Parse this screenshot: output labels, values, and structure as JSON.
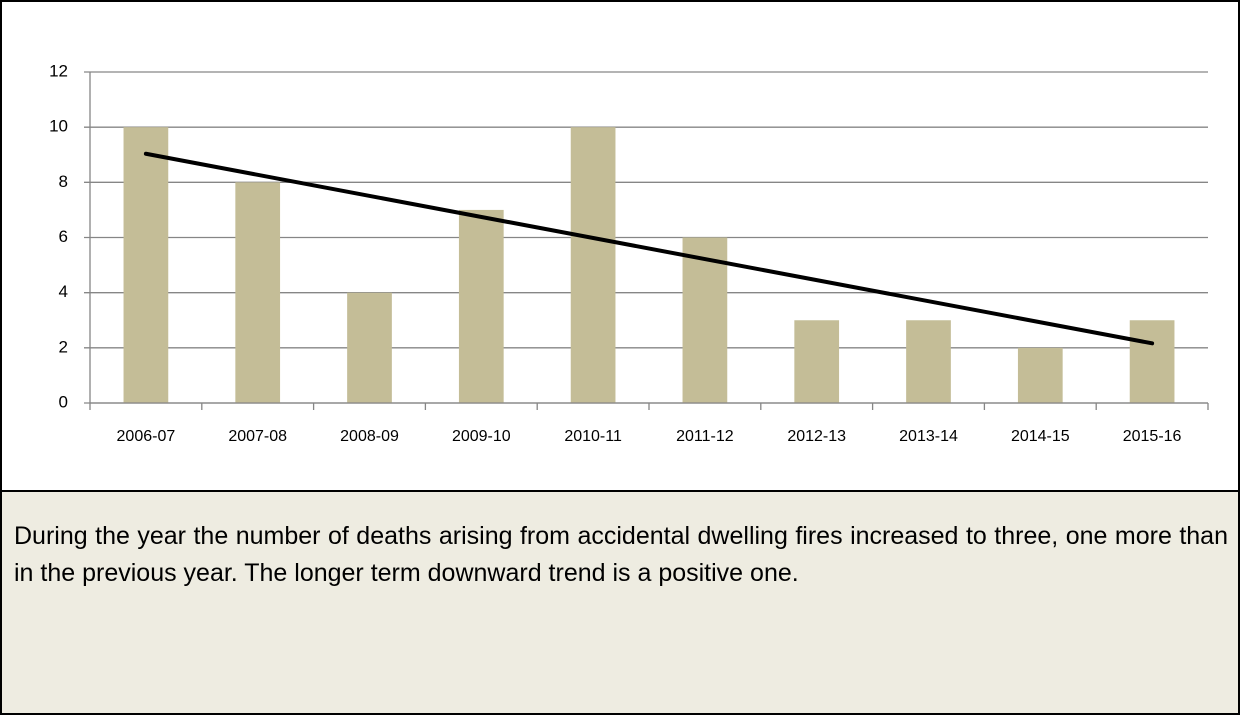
{
  "chart_data": {
    "type": "bar",
    "categories": [
      "2006-07",
      "2007-08",
      "2008-09",
      "2009-10",
      "2010-11",
      "2011-12",
      "2012-13",
      "2013-14",
      "2014-15",
      "2015-16"
    ],
    "values": [
      10,
      8,
      4,
      7,
      10,
      6,
      3,
      3,
      2,
      3
    ],
    "color": "#c4bd97",
    "ylim": [
      0,
      12
    ],
    "yticks": [
      0,
      2,
      4,
      6,
      8,
      10,
      12
    ],
    "grid": true,
    "trendline": "linear",
    "trendline_color": "#000000"
  },
  "text": "During the year the number of deaths arising from accidental dwelling fires increased to three, one more than in the previous year. The longer term downward trend is a positive one."
}
